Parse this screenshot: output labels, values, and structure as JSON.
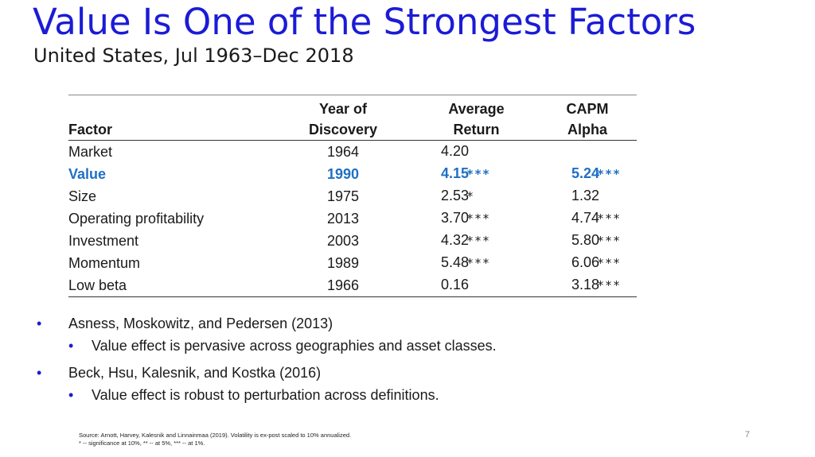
{
  "slide": {
    "title": "Value Is One of the Strongest Factors",
    "subtitle": "United States, Jul 1963–Dec 2018",
    "page_number": "7",
    "colors": {
      "title": "#1b1bd6",
      "highlight_row": "#1f6fc4",
      "bullet": "#1b1bd6"
    }
  },
  "table": {
    "headers": {
      "factor": "Factor",
      "year_line1": "Year of",
      "year_line2": "Discovery",
      "return_line1": "Average",
      "return_line2": "Return",
      "alpha_line1": "CAPM",
      "alpha_line2": "Alpha"
    },
    "rows": [
      {
        "factor": "Market",
        "year": "1964",
        "return": "4.20",
        "return_stars": "",
        "alpha": "",
        "alpha_stars": ""
      },
      {
        "factor": "Value",
        "year": "1990",
        "return": "4.15",
        "return_stars": "***",
        "alpha": "5.24",
        "alpha_stars": "***"
      },
      {
        "factor": "Size",
        "year": "1975",
        "return": "2.53",
        "return_stars": "*",
        "alpha": "1.32",
        "alpha_stars": ""
      },
      {
        "factor": "Operating profitability",
        "year": "2013",
        "return": "3.70",
        "return_stars": "***",
        "alpha": "4.74",
        "alpha_stars": "***"
      },
      {
        "factor": "Investment",
        "year": "2003",
        "return": "4.32",
        "return_stars": "***",
        "alpha": "5.80",
        "alpha_stars": "***"
      },
      {
        "factor": "Momentum",
        "year": "1989",
        "return": "5.48",
        "return_stars": "***",
        "alpha": "6.06",
        "alpha_stars": "***"
      },
      {
        "factor": "Low beta",
        "year": "1966",
        "return": "0.16",
        "return_stars": "",
        "alpha": "3.18",
        "alpha_stars": "***"
      }
    ]
  },
  "bullets": [
    {
      "text": "Asness, Moskowitz, and Pedersen (2013)",
      "sub": "Value effect is pervasive across geographies and asset classes."
    },
    {
      "text": "Beck, Hsu, Kalesnik, and Kostka (2016)",
      "sub": "Value effect is robust to perturbation across definitions."
    }
  ],
  "footnote": {
    "source": "Source: Arnott, Harvey, Kalesnik and Linnainmaa (2019). Volatility is ex-post scaled to 10% annualized.",
    "significance": "* -- significance at 10%, ** -- at 5%, *** -- at 1%."
  }
}
